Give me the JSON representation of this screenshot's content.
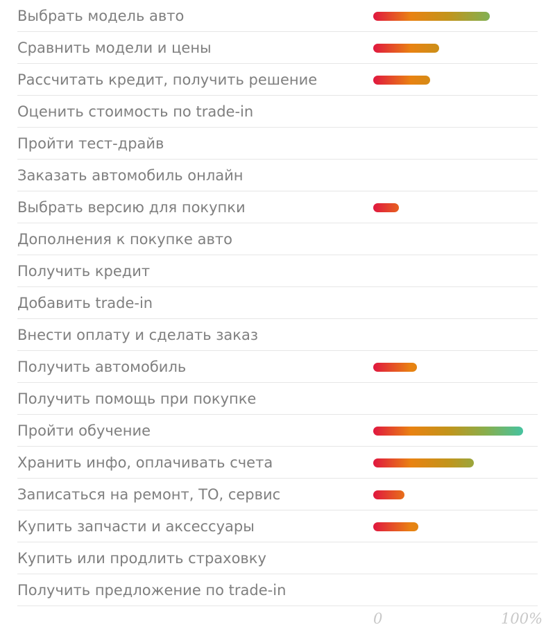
{
  "chart_data": {
    "type": "bar",
    "orientation": "horizontal",
    "categories": [
      "Выбрать модель авто",
      "Сравнить модели и цены",
      "Рассчитать кредит, получить решение",
      "Оценить стоимость по trade-in",
      "Пройти тест-драйв",
      "Заказать автомобиль онлайн",
      "Выбрать версию для покупки",
      "Дополнения к покупке авто",
      "Получить кредит",
      "Добавить trade-in",
      "Внести оплату и сделать заказ",
      "Получить автомобиль",
      "Получить помощь при покупке",
      "Пройти обучение",
      "Хранить инфо, оплачивать счета",
      "Записаться на ремонт, ТО, сервис",
      "Купить запчасти и аксессуары",
      "Купить или продлить страховку",
      "Получить предложение по trade-in"
    ],
    "values": [
      78,
      44,
      38,
      0,
      0,
      0,
      17,
      0,
      0,
      0,
      0,
      29,
      0,
      100,
      67,
      21,
      30,
      0,
      0
    ],
    "xlim": [
      0,
      100
    ],
    "x_tick_labels": [
      "0",
      "100%"
    ],
    "gradient_colors": [
      "#e0173f",
      "#e98212",
      "#c2941b",
      "#88ae4d",
      "#46c3a0"
    ],
    "label_color": "#7f7f7f",
    "tick_color": "#c8c8c8",
    "divider_color": "#e6e6e6",
    "grid": false
  }
}
